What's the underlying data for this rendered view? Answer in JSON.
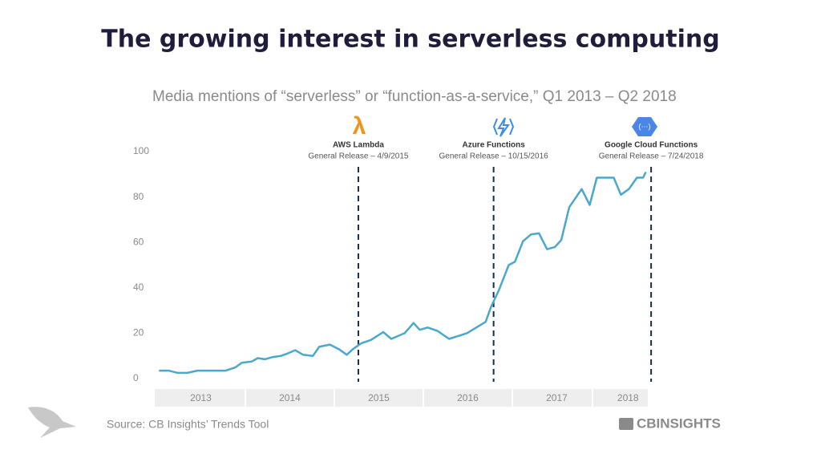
{
  "title": "The growing interest in serverless computing",
  "chart_data": {
    "type": "line",
    "title": "Media mentions of “serverless” or “function-as-a-service,” Q1 2013 – Q2 2018",
    "x": [
      2013.03,
      2013.14,
      2013.24,
      2013.35,
      2013.46,
      2013.68,
      2013.78,
      2013.89,
      2013.96,
      2014.07,
      2014.14,
      2014.22,
      2014.31,
      2014.4,
      2014.47,
      2014.56,
      2014.65,
      2014.76,
      2014.83,
      2014.95,
      2015.05,
      2015.14,
      2015.21,
      2015.3,
      2015.41,
      2015.55,
      2015.64,
      2015.79,
      2015.89,
      2015.96,
      2016.05,
      2016.16,
      2016.29,
      2016.49,
      2016.7,
      2016.76,
      2016.85,
      2016.96,
      2017.03,
      2017.12,
      2017.21,
      2017.3,
      2017.39,
      2017.48,
      2017.55,
      2017.64,
      2017.78,
      2017.87,
      2017.95,
      2018.14,
      2018.22,
      2018.31,
      2018.4,
      2018.47,
      2018.5
    ],
    "values": [
      3.5,
      3.5,
      2.5,
      2.5,
      3.5,
      3.5,
      3.5,
      5,
      7,
      7.5,
      9,
      8.5,
      9.5,
      10,
      11,
      12.5,
      10.5,
      10,
      14,
      15,
      13,
      10.5,
      13,
      15.5,
      17,
      20.5,
      17.5,
      20,
      24.5,
      21.5,
      22.5,
      21,
      17.5,
      20,
      25,
      31.5,
      39,
      50,
      51.5,
      60.5,
      63.5,
      64,
      57,
      58,
      61,
      75.5,
      83.5,
      76.5,
      88.5,
      88.5,
      81,
      83.5,
      88.5,
      88.5,
      91
    ],
    "color": "#4aa8cc",
    "xlim": [
      2013,
      2018.55
    ],
    "xticks": [
      {
        "value": 2013.5,
        "label": "2013"
      },
      {
        "value": 2014.5,
        "label": "2014"
      },
      {
        "value": 2015.5,
        "label": "2015"
      },
      {
        "value": 2016.5,
        "label": "2016"
      },
      {
        "value": 2017.5,
        "label": "2017"
      },
      {
        "value": 2018.3,
        "label": "2018"
      }
    ],
    "ylim": [
      0,
      100
    ],
    "yticks": [
      0,
      20,
      40,
      60,
      80,
      100
    ],
    "grid": false,
    "annotations": [
      {
        "x": 2015.27,
        "label": "AWS Lambda",
        "sublabel": "General Release – 4/9/2015"
      },
      {
        "x": 2016.79,
        "label": "Azure Functions",
        "sublabel": "General Release – 10/15/2016"
      },
      {
        "x": 2018.56,
        "label": "Google Cloud Functions",
        "sublabel": "General Release – 7/24/2018"
      }
    ]
  },
  "source": "Source: CB Insights’ Trends Tool",
  "logo": "CBINSIGHTS"
}
